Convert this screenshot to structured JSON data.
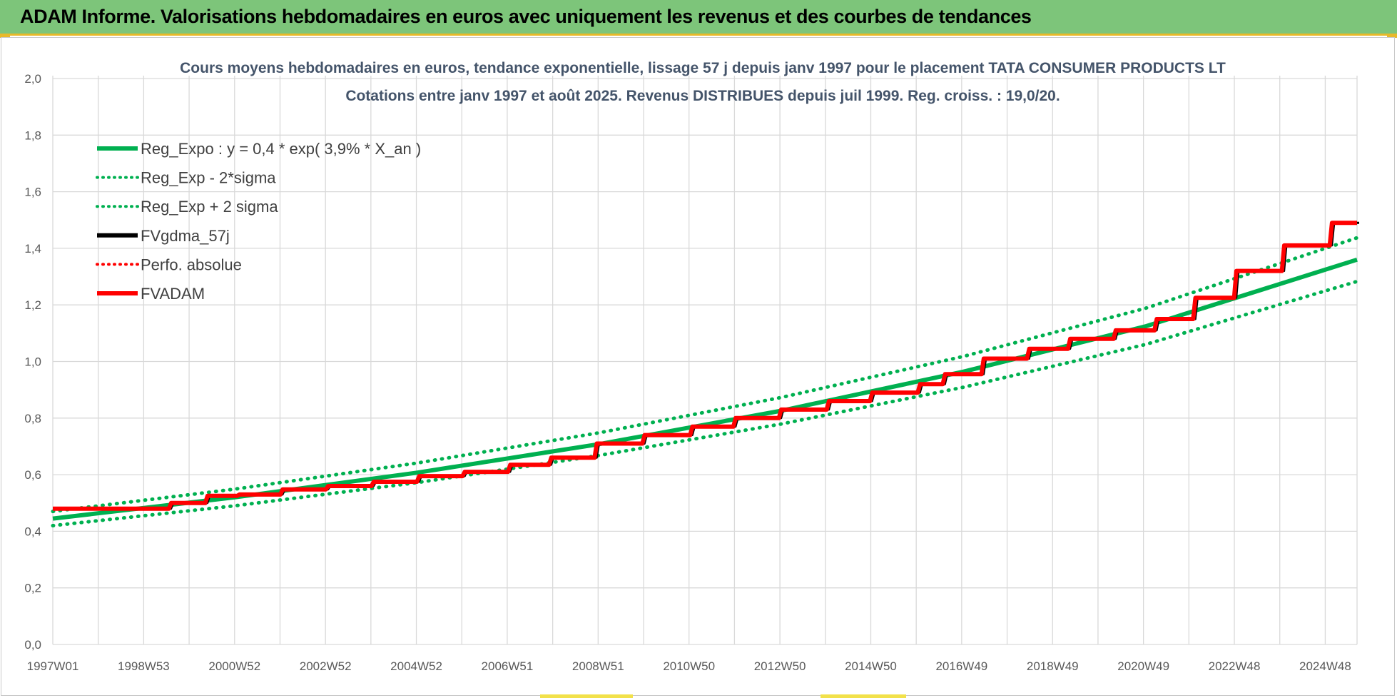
{
  "banner": {
    "title": "ADAM Informe. Valorisations hebdomadaires en euros avec uniquement les revenus et des courbes de tendances"
  },
  "colors": {
    "banner_bg": "#7dc57a",
    "accent_yellow": "#e8b92a",
    "reg_expo": "#00b050",
    "reg_band": "#00b050",
    "fvgdma": "#000000",
    "perfo": "#ff0000",
    "fvadam": "#ff0000",
    "title_text": "#44546a",
    "grid": "#d9d9d9"
  },
  "chart_data": {
    "type": "line",
    "title_line1": "Cours moyens hebdomadaires en euros, tendance exponentielle, lissage 57 j depuis janv 1997 pour le placement TATA CONSUMER PRODUCTS LT",
    "title_line2": "Cotations entre janv 1997 et août 2025.  Revenus DISTRIBUES depuis juil 1999.  Reg. croiss. : 19,0/20.",
    "xlabel": "",
    "ylabel": "",
    "ylim": [
      0,
      2.0
    ],
    "xlim": [
      1997.0,
      2025.65
    ],
    "grid": true,
    "legend_position": "top-left",
    "y_ticks": [
      "0,0",
      "0,2",
      "0,4",
      "0,6",
      "0,8",
      "1,0",
      "1,2",
      "1,4",
      "1,6",
      "1,8",
      "2,0"
    ],
    "x_tick_labels": [
      "1997W01",
      "1998W53",
      "2000W52",
      "2002W52",
      "2004W52",
      "2006W51",
      "2008W51",
      "2010W50",
      "2012W50",
      "2014W50",
      "2016W49",
      "2018W49",
      "2020W49",
      "2022W48",
      "2024W48"
    ],
    "legend": [
      {
        "label": "Reg_Expo : y = 0,4 * exp( 3,9% *  X_an )",
        "style": "solid",
        "color": "#00b050"
      },
      {
        "label": "Reg_Exp - 2*sigma",
        "style": "dotted",
        "color": "#00b050"
      },
      {
        "label": "Reg_Exp + 2 sigma",
        "style": "dotted",
        "color": "#00b050"
      },
      {
        "label": "FVgdma_57j",
        "style": "solid",
        "color": "#000000"
      },
      {
        "label": "Perfo. absolue",
        "style": "dotted",
        "color": "#ff0000"
      },
      {
        "label": "FVADAM",
        "style": "solid",
        "color": "#ff0000"
      }
    ],
    "series": [
      {
        "name": "Reg_Expo : y = 0,4 * exp( 3,9% *  X_an )",
        "x": [
          1997.0,
          2001.0,
          2005.0,
          2009.0,
          2013.0,
          2017.0,
          2021.0,
          2025.65
        ],
        "y": [
          0.445,
          0.52,
          0.607,
          0.708,
          0.826,
          0.964,
          1.124,
          1.36
        ]
      },
      {
        "name": "Reg_Exp - 2*sigma",
        "x": [
          1997.0,
          2001.0,
          2005.0,
          2009.0,
          2013.0,
          2017.0,
          2021.0,
          2025.65
        ],
        "y": [
          0.42,
          0.49,
          0.572,
          0.668,
          0.779,
          0.909,
          1.06,
          1.283
        ]
      },
      {
        "name": "Reg_Exp + 2 sigma",
        "x": [
          1997.0,
          2001.0,
          2005.0,
          2009.0,
          2013.0,
          2017.0,
          2021.0,
          2025.65
        ],
        "y": [
          0.47,
          0.549,
          0.641,
          0.748,
          0.873,
          1.018,
          1.188,
          1.437
        ]
      },
      {
        "name": "FVADAM",
        "x": [
          1997.0,
          1999.55,
          1999.6,
          2000.35,
          2000.4,
          2001.05,
          2001.1,
          2002.0,
          2002.05,
          2003.0,
          2003.05,
          2004.0,
          2004.05,
          2005.0,
          2005.05,
          2006.0,
          2006.05,
          2007.0,
          2007.05,
          2007.9,
          2007.95,
          2008.9,
          2008.95,
          2009.95,
          2010.0,
          2011.0,
          2011.05,
          2011.95,
          2012.0,
          2012.95,
          2013.0,
          2014.0,
          2014.05,
          2014.95,
          2015.0,
          2016.0,
          2016.05,
          2016.55,
          2016.6,
          2017.4,
          2017.45,
          2018.4,
          2018.45,
          2019.3,
          2019.35,
          2020.3,
          2020.35,
          2021.2,
          2021.25,
          2022.05,
          2022.1,
          2022.95,
          2023.0,
          2024.0,
          2024.05,
          2025.05,
          2025.1,
          2025.65
        ],
        "y": [
          0.48,
          0.48,
          0.5,
          0.5,
          0.525,
          0.525,
          0.53,
          0.53,
          0.548,
          0.548,
          0.56,
          0.56,
          0.575,
          0.575,
          0.595,
          0.595,
          0.61,
          0.61,
          0.635,
          0.635,
          0.66,
          0.66,
          0.71,
          0.71,
          0.74,
          0.74,
          0.77,
          0.77,
          0.8,
          0.8,
          0.83,
          0.83,
          0.86,
          0.86,
          0.89,
          0.89,
          0.92,
          0.92,
          0.955,
          0.955,
          1.01,
          1.01,
          1.045,
          1.045,
          1.08,
          1.08,
          1.11,
          1.11,
          1.15,
          1.15,
          1.225,
          1.225,
          1.32,
          1.32,
          1.41,
          1.41,
          1.49,
          1.49
        ]
      }
    ]
  }
}
